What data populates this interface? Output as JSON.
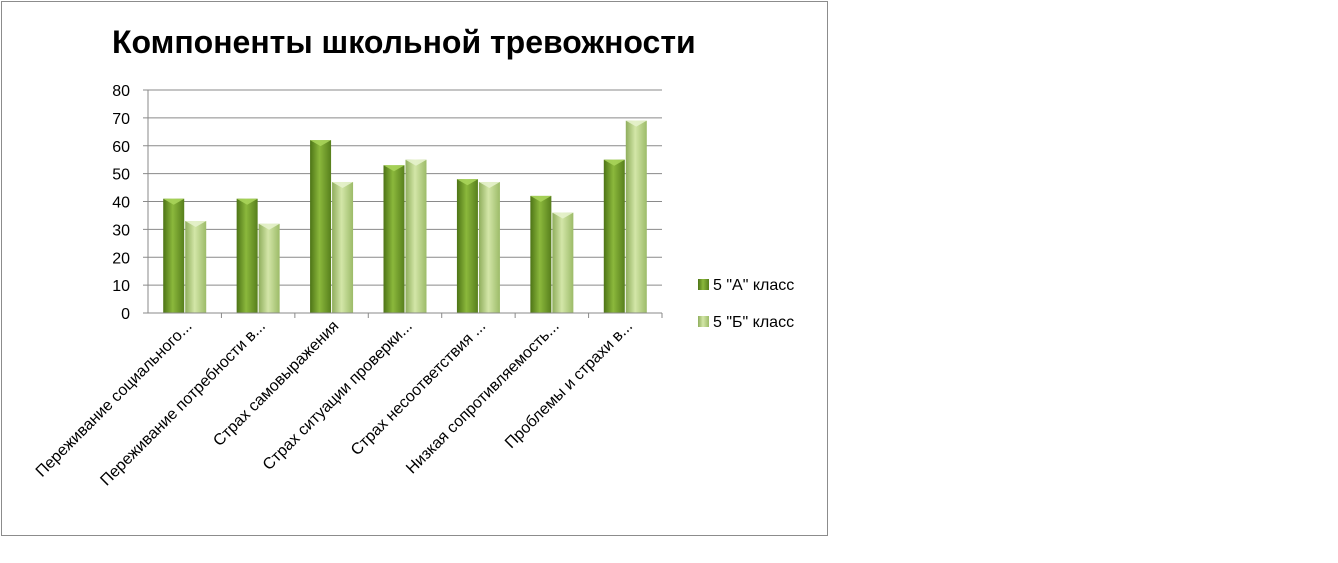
{
  "chart_data": {
    "type": "bar",
    "title": "Компоненты школьной тревожности",
    "xlabel": "",
    "ylabel": "",
    "ylim": [
      0,
      80
    ],
    "yticks": [
      0,
      10,
      20,
      30,
      40,
      50,
      60,
      70,
      80
    ],
    "grid": true,
    "legend_position": "right",
    "categories": [
      "Переживание социального...",
      "Переживание потребности в...",
      "Страх самовыражения",
      "Страх ситуации проверки...",
      "Страх несоответствия ...",
      "Низкая сопротивляемость...",
      "Проблемы и страхи в..."
    ],
    "series": [
      {
        "name": "5 \"А\" класс",
        "color": "#6f9a2a",
        "values": [
          41,
          41,
          62,
          53,
          48,
          42,
          55
        ]
      },
      {
        "name": "5 \"Б\" класс",
        "color": "#b3cc84",
        "values": [
          33,
          32,
          47,
          55,
          47,
          36,
          69
        ]
      }
    ]
  }
}
